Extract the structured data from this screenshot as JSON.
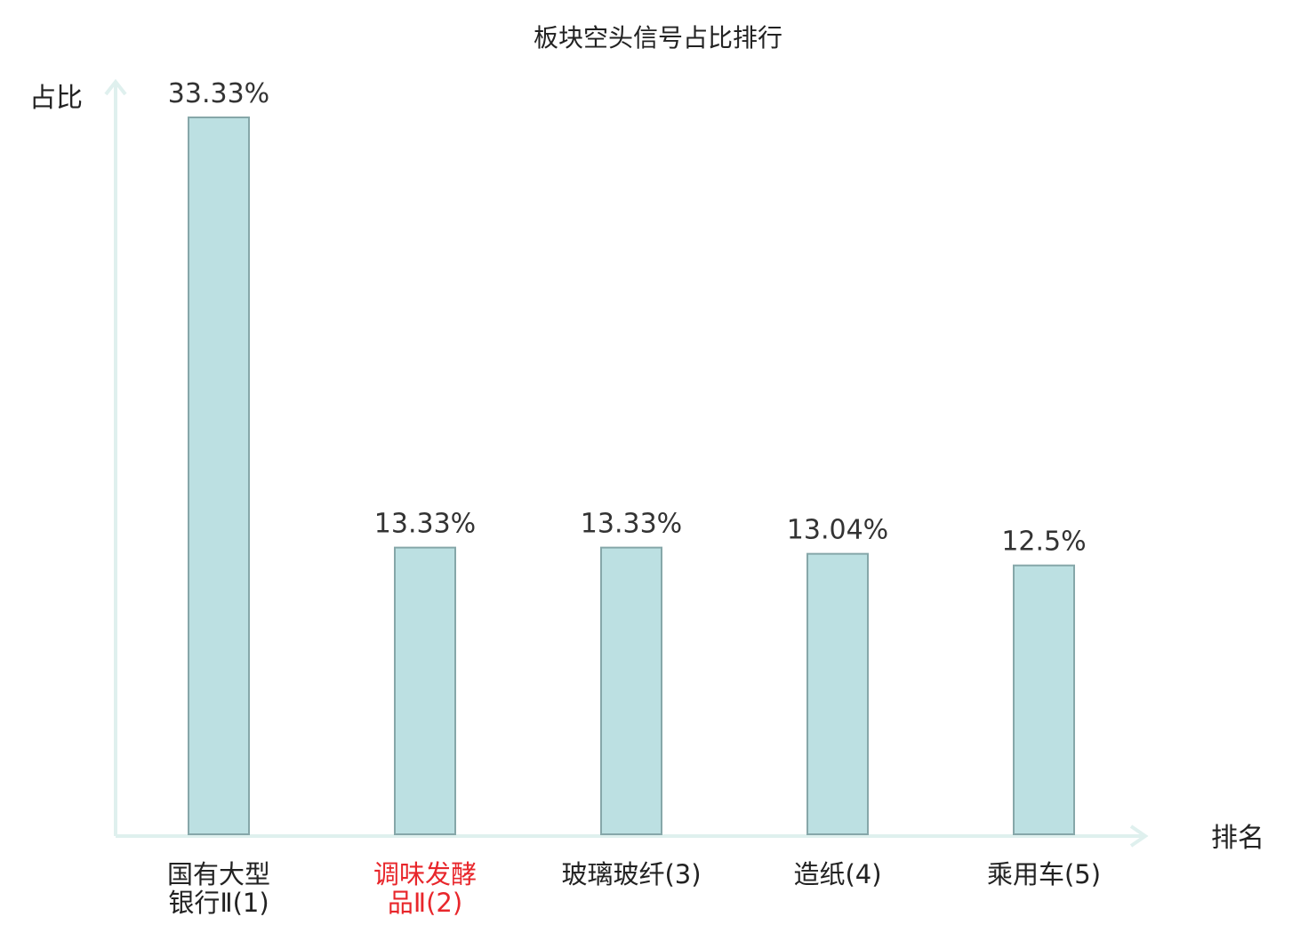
{
  "chart_data": {
    "type": "bar",
    "title": "板块空头信号占比排行",
    "ylabel": "占比",
    "xlabel": "排名",
    "ylim": [
      0,
      33.33
    ],
    "grid": false,
    "categories": [
      {
        "lines": [
          "国有大型",
          "银行Ⅱ(1)"
        ],
        "highlight": false
      },
      {
        "lines": [
          "调味发酵",
          "品Ⅱ(2)"
        ],
        "highlight": true
      },
      {
        "lines": [
          "玻璃玻纤(3)"
        ],
        "highlight": false
      },
      {
        "lines": [
          "造纸(4)"
        ],
        "highlight": false
      },
      {
        "lines": [
          "乘用车(5)"
        ],
        "highlight": false
      }
    ],
    "values": [
      33.33,
      13.33,
      13.33,
      13.04,
      12.5
    ],
    "value_labels": [
      "33.33%",
      "13.33%",
      "13.33%",
      "13.04%",
      "12.5%"
    ]
  },
  "colors": {
    "bar_fill": "#bce0e2",
    "bar_stroke": "#86a7a9",
    "axis": "#dff0ee",
    "highlight_text": "#e8262b"
  }
}
